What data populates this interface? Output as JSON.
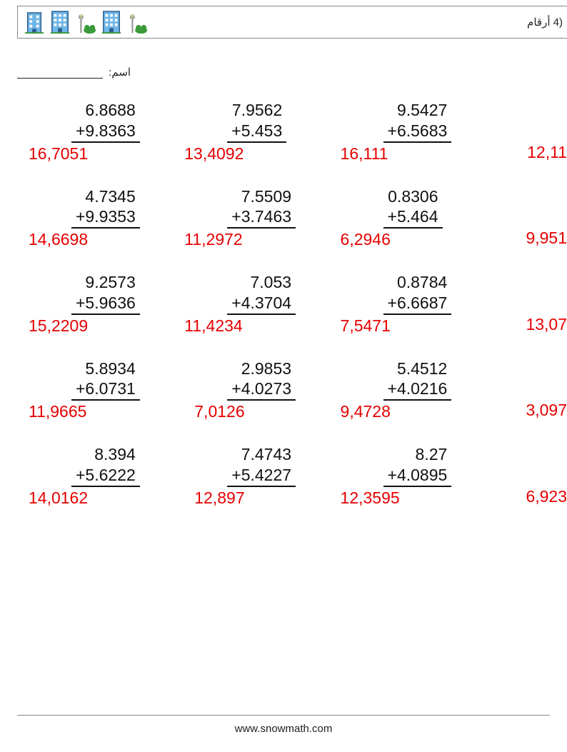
{
  "header": {
    "title_rtl": "(4 أرقام"
  },
  "name_label": "اسم:",
  "footer": "www.snowmath.com",
  "colors": {
    "answer": "#e60000",
    "text": "#111111",
    "rule": "#888888",
    "bg": "#ffffff"
  },
  "font": {
    "body_pt": 17,
    "header_pt": 11
  },
  "problems": [
    [
      {
        "a": "6.8688",
        "b": "+9.8363",
        "ans": "16,7051"
      },
      {
        "a": "7.9562",
        "b": "+5.453",
        "ans": "13,4092"
      },
      {
        "a": "9.5427",
        "b": "+6.5683",
        "ans": "16,111"
      },
      {
        "a": "",
        "b": "",
        "ans": "12,11"
      }
    ],
    [
      {
        "a": "4.7345",
        "b": "+9.9353",
        "ans": "14,6698"
      },
      {
        "a": "7.5509",
        "b": "+3.7463",
        "ans": "11,2972"
      },
      {
        "a": "0.8306",
        "b": "+5.464",
        "ans": "6,2946"
      },
      {
        "a": "",
        "b": "",
        "ans": "9,951"
      }
    ],
    [
      {
        "a": "9.2573",
        "b": "+5.9636",
        "ans": "15,2209"
      },
      {
        "a": "7.053",
        "b": "+4.3704",
        "ans": "11,4234"
      },
      {
        "a": "0.8784",
        "b": "+6.6687",
        "ans": "7,5471"
      },
      {
        "a": "",
        "b": "",
        "ans": "13,07"
      }
    ],
    [
      {
        "a": "5.8934",
        "b": "+6.0731",
        "ans": "11,9665"
      },
      {
        "a": "2.9853",
        "b": "+4.0273",
        "ans": "7,0126"
      },
      {
        "a": "5.4512",
        "b": "+4.0216",
        "ans": "9,4728"
      },
      {
        "a": "",
        "b": "",
        "ans": "3,097"
      }
    ],
    [
      {
        "a": "8.394",
        "b": "+5.6222",
        "ans": "14,0162"
      },
      {
        "a": "7.4743",
        "b": "+5.4227",
        "ans": "12,897"
      },
      {
        "a": "8.27",
        "b": "+4.0895",
        "ans": "12,3595"
      },
      {
        "a": "",
        "b": "",
        "ans": "6,923"
      }
    ]
  ]
}
